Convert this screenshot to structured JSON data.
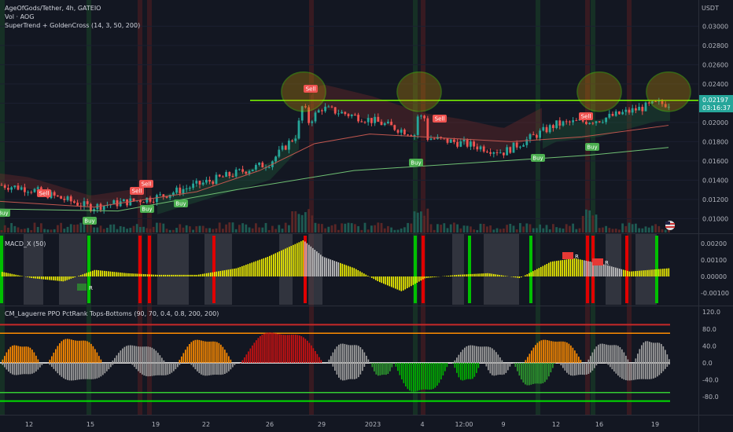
{
  "header": {
    "title": "AgeOfGods/Tether, 4h, GATEIO",
    "vol": "Vol · AOG",
    "indicator": "SuperTrend + GoldenCross (14, 3, 50, 200)"
  },
  "price_axis": {
    "currency": "USDT",
    "ticks": [
      "0.03000",
      "0.02800",
      "0.02600",
      "0.02400",
      "0.02200",
      "0.02000",
      "0.01800",
      "0.01600",
      "0.01400",
      "0.01200",
      "0.01000"
    ],
    "last_price": "0.02197",
    "countdown": "03:16:37"
  },
  "macd_pane": {
    "title": "MACD_X (50)",
    "ticks": [
      "0.00200",
      "0.00100",
      "0.00000",
      "-0.00100"
    ]
  },
  "ppo_pane": {
    "title": "CM_Laguerre PPO PctRank Tops-Bottoms (90, 70, 0.4, 0.8, 200, 200)",
    "ticks": [
      "120.0",
      "80.0",
      "40.0",
      "0.0",
      "-40.0",
      "-80.0"
    ]
  },
  "x_axis": {
    "ticks": [
      "12",
      "15",
      "19",
      "22",
      "26",
      "29",
      "2023",
      "4",
      "12:00",
      "9",
      "12",
      "16",
      "19"
    ]
  },
  "signals": {
    "sell": "Sell",
    "buy": "Buy",
    "r": "R"
  },
  "colors": {
    "background": "#131722",
    "up": "#26a69a",
    "down": "#ef5350",
    "resistance": "#7cfc00",
    "macd_bar": "#f5f500",
    "orange": "#ff8c00",
    "red_zone": "#cc1111",
    "green_zone": "#00b000"
  },
  "chart_data": {
    "type": "candlestick",
    "symbol": "AgeOfGods/Tether",
    "timeframe": "4h",
    "exchange": "GATEIO",
    "close_path": {
      "x": [
        "12",
        "15",
        "19",
        "22",
        "26",
        "29",
        "2023",
        "4",
        "12:00",
        "9",
        "12",
        "16",
        "19"
      ],
      "close": [
        0.0131,
        0.0112,
        0.0122,
        0.0138,
        0.0158,
        0.0215,
        0.0202,
        0.0185,
        0.0178,
        0.0169,
        0.0198,
        0.0203,
        0.0219
      ]
    },
    "resistance_level": 0.0223,
    "last_price": 0.02197,
    "ylim": [
      0.0093,
      0.0306
    ]
  }
}
